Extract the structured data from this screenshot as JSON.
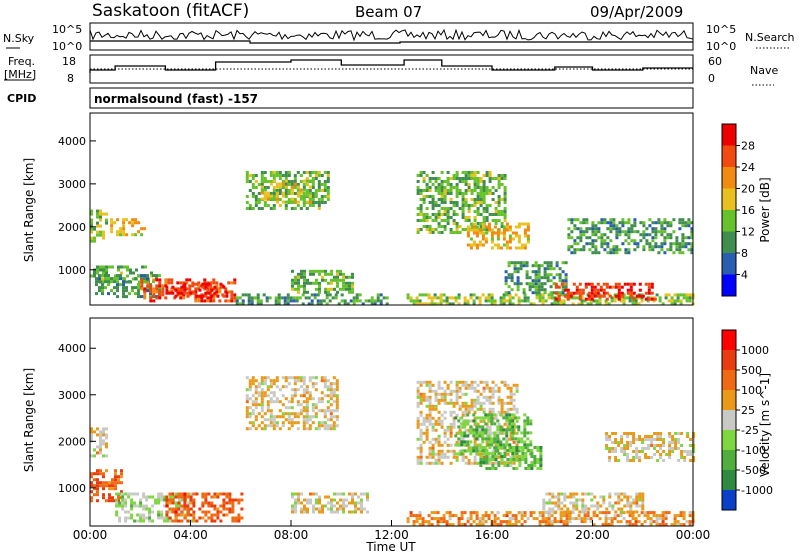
{
  "header": {
    "station": "Saskatoon (fitACF)",
    "beam": "Beam 07",
    "date": "09/Apr/2009"
  },
  "noise_panel": {
    "left_label": "N.Sky",
    "left_ticks": [
      "10^5",
      "10^0"
    ],
    "right_label": "N.Search",
    "right_ticks": [
      "10^5",
      "10^0"
    ]
  },
  "freq_panel": {
    "left_label_line1": "Freq.",
    "left_label_line2": "[MHz]",
    "left_ticks": [
      "18",
      "8"
    ],
    "right_label": "Nave",
    "right_ticks": [
      "60",
      "0"
    ]
  },
  "cpid_panel": {
    "label": "CPID",
    "text": "normalsound (fast) -157"
  },
  "colors": {
    "power": [
      "#0000ff",
      "#2a5db0",
      "#3f8e4f",
      "#66c22a",
      "#e8c020",
      "#f08a10",
      "#f04a10",
      "#ee0000"
    ],
    "velocity": [
      "#0a3fc8",
      "#2d8a3f",
      "#4fae3c",
      "#7fd640",
      "#c8c8c4",
      "#e89a18",
      "#f06a14",
      "#ea3c10",
      "#ff0000"
    ]
  },
  "chart_data": [
    {
      "type": "heatmap",
      "panel": "power",
      "xlabel": "Time UT",
      "ylabel": "Slant Range [km]",
      "x_ticks": [
        "00:00",
        "04:00",
        "08:00",
        "12:00",
        "16:00",
        "20:00",
        "00:00"
      ],
      "xlim_hours": [
        0,
        24
      ],
      "y_ticks": [
        1000,
        2000,
        3000,
        4000
      ],
      "ylim_km": [
        180,
        4650
      ],
      "colorbar_label": "Power [dB]",
      "colorbar_ticks": [
        "28",
        "24",
        "20",
        "16",
        "12",
        "8",
        "4"
      ],
      "colorbar_range": [
        0,
        30
      ],
      "regions": [
        {
          "t0": 0.0,
          "t1": 2.5,
          "r0": 700,
          "r1": 1100,
          "value": 12
        },
        {
          "t0": 0.0,
          "t1": 0.6,
          "r0": 1700,
          "r1": 2400,
          "value": 14
        },
        {
          "t0": 0.8,
          "t1": 2.2,
          "r0": 1800,
          "r1": 2200,
          "value": 18
        },
        {
          "t0": 0.2,
          "t1": 2.8,
          "r0": 400,
          "r1": 900,
          "value": 10
        },
        {
          "t0": 2.0,
          "t1": 5.8,
          "r0": 300,
          "r1": 800,
          "value": 24
        },
        {
          "t0": 3.0,
          "t1": 5.5,
          "r0": 400,
          "r1": 700,
          "value": 28
        },
        {
          "t0": 5.8,
          "t1": 12.0,
          "r0": 200,
          "r1": 450,
          "value": 10
        },
        {
          "t0": 6.2,
          "t1": 9.5,
          "r0": 2400,
          "r1": 3300,
          "value": 12
        },
        {
          "t0": 6.8,
          "t1": 8.8,
          "r0": 2600,
          "r1": 3100,
          "value": 16
        },
        {
          "t0": 8.0,
          "t1": 10.5,
          "r0": 500,
          "r1": 1000,
          "value": 12
        },
        {
          "t0": 12.6,
          "t1": 24.0,
          "r0": 200,
          "r1": 450,
          "value": 14
        },
        {
          "t0": 13.0,
          "t1": 16.5,
          "r0": 1900,
          "r1": 3300,
          "value": 12
        },
        {
          "t0": 15.0,
          "t1": 17.5,
          "r0": 1500,
          "r1": 2100,
          "value": 18
        },
        {
          "t0": 16.5,
          "t1": 19.0,
          "r0": 500,
          "r1": 1200,
          "value": 10
        },
        {
          "t0": 18.5,
          "t1": 22.5,
          "r0": 350,
          "r1": 700,
          "value": 26
        },
        {
          "t0": 19.0,
          "t1": 24.0,
          "r0": 1400,
          "r1": 2200,
          "value": 10
        }
      ]
    },
    {
      "type": "heatmap",
      "panel": "velocity",
      "xlabel": "Time UT",
      "ylabel": "Slant Range [km]",
      "x_ticks": [
        "00:00",
        "04:00",
        "08:00",
        "12:00",
        "16:00",
        "20:00",
        "00:00"
      ],
      "xlim_hours": [
        0,
        24
      ],
      "y_ticks": [
        1000,
        2000,
        3000,
        4000
      ],
      "ylim_km": [
        180,
        4650
      ],
      "colorbar_label": "Velocity [m s^-1]",
      "colorbar_ticks": [
        "1000",
        "500",
        "100",
        "25",
        "-25",
        "-100",
        "-500",
        "-1000"
      ],
      "regions": [
        {
          "t0": 0.0,
          "t1": 1.2,
          "r0": 700,
          "r1": 1400,
          "value": 200
        },
        {
          "t0": 0.0,
          "t1": 0.6,
          "r0": 1700,
          "r1": 2300,
          "value": 0
        },
        {
          "t0": 1.0,
          "t1": 4.0,
          "r0": 300,
          "r1": 900,
          "value": -80
        },
        {
          "t0": 3.0,
          "t1": 6.0,
          "r0": 300,
          "r1": 900,
          "value": 150
        },
        {
          "t0": 6.2,
          "t1": 9.8,
          "r0": 2300,
          "r1": 3400,
          "value": 0
        },
        {
          "t0": 8.0,
          "t1": 11.0,
          "r0": 500,
          "r1": 900,
          "value": 0
        },
        {
          "t0": 13.0,
          "t1": 17.0,
          "r0": 1500,
          "r1": 3300,
          "value": 0
        },
        {
          "t0": 14.5,
          "t1": 17.5,
          "r0": 1700,
          "r1": 2600,
          "value": -400
        },
        {
          "t0": 15.5,
          "t1": 18.0,
          "r0": 1400,
          "r1": 1900,
          "value": -300
        },
        {
          "t0": 12.6,
          "t1": 24.0,
          "r0": 200,
          "r1": 500,
          "value": 60
        },
        {
          "t0": 18.0,
          "t1": 22.0,
          "r0": 500,
          "r1": 900,
          "value": 0
        },
        {
          "t0": 20.5,
          "t1": 24.0,
          "r0": 1600,
          "r1": 2200,
          "value": 0
        }
      ]
    }
  ]
}
